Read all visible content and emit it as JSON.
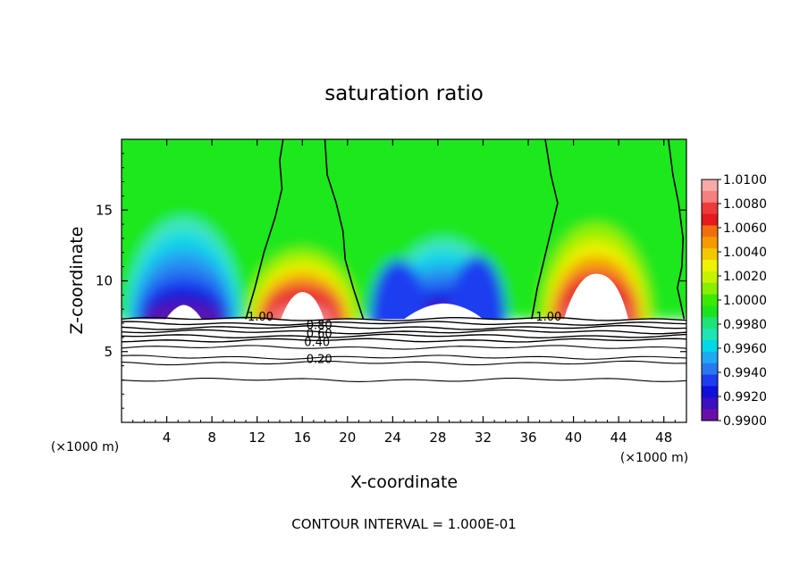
{
  "chart_data": {
    "type": "heatmap",
    "title": "saturation ratio",
    "xlabel": "X-coordinate",
    "ylabel": "Z-coordinate",
    "xunit_label_left": "(×1000 m)",
    "xunit_label_right": "(×1000 m)",
    "footer": "CONTOUR INTERVAL = 1.000E-01",
    "xlim": [
      0,
      50
    ],
    "ylim": [
      0,
      20
    ],
    "xticks": [
      4,
      8,
      12,
      16,
      20,
      24,
      28,
      32,
      36,
      40,
      44,
      48
    ],
    "yticks": [
      5,
      10,
      15
    ],
    "colorbar": {
      "min": 0.99,
      "max": 1.01,
      "labels": [
        "1.0100",
        "1.0080",
        "1.0060",
        "1.0040",
        "1.0020",
        "1.0000",
        "0.9980",
        "0.9960",
        "0.9940",
        "0.9920",
        "0.9900"
      ],
      "colors": [
        "#f8aaa8",
        "#f58080",
        "#ee3a3a",
        "#e41a1c",
        "#f06e10",
        "#f59a00",
        "#f2c800",
        "#eef200",
        "#c6f200",
        "#88ee00",
        "#3cea00",
        "#1ae41e",
        "#1ee37a",
        "#1ee3b4",
        "#00d8e8",
        "#20a8f0",
        "#2878f0",
        "#1e3cf0",
        "#1010d8",
        "#3a10c0",
        "#6a10a8"
      ]
    },
    "moist_regions": [
      {
        "xc": 16,
        "top": 12.2,
        "max": 1.0075
      },
      {
        "xc": 42,
        "top": 14.0,
        "max": 1.0055
      }
    ],
    "dry_regions": [
      {
        "xc": 5.5,
        "top": 14.5,
        "min": 0.9905
      },
      {
        "xc": 28.5,
        "top": 13.0,
        "min": 0.9915
      }
    ],
    "contour_labels": [
      {
        "text": "1.00",
        "x": 12.3,
        "z": 7.5
      },
      {
        "text": "1.00",
        "x": 37.8,
        "z": 7.5
      },
      {
        "text": "0.80",
        "x": 17.5,
        "z": 6.9
      },
      {
        "text": "0.60",
        "x": 17.5,
        "z": 6.3
      },
      {
        "text": "0.40",
        "x": 17.3,
        "z": 5.7
      },
      {
        "text": "0.20",
        "x": 17.5,
        "z": 4.5
      }
    ],
    "surface_contour_levels": [
      1.0,
      0.9,
      0.8,
      0.7,
      0.6,
      0.5,
      0.4,
      0.3,
      0.2,
      0.1
    ]
  }
}
